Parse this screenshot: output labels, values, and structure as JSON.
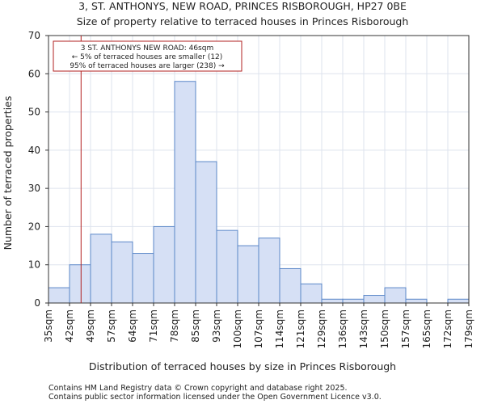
{
  "chart_data": {
    "type": "bar",
    "title_line1": "3, ST. ANTHONYS, NEW ROAD, PRINCES RISBOROUGH, HP27 0BE",
    "title_line2": "Size of property relative to terraced houses in Princes Risborough",
    "xlabel": "Distribution of terraced houses by size in Princes Risborough",
    "ylabel": "Number of terraced properties",
    "tick_labels": [
      "35sqm",
      "42sqm",
      "49sqm",
      "57sqm",
      "64sqm",
      "71sqm",
      "78sqm",
      "85sqm",
      "93sqm",
      "100sqm",
      "107sqm",
      "114sqm",
      "121sqm",
      "129sqm",
      "136sqm",
      "143sqm",
      "150sqm",
      "157sqm",
      "165sqm",
      "172sqm",
      "179sqm"
    ],
    "values": [
      4,
      10,
      18,
      16,
      13,
      20,
      58,
      37,
      19,
      15,
      17,
      9,
      5,
      1,
      1,
      2,
      4,
      1,
      0,
      1
    ],
    "ylim": [
      0,
      70
    ],
    "yticks": [
      0,
      10,
      20,
      30,
      40,
      50,
      60,
      70
    ],
    "grid": true,
    "bar_color": "#d6e0f5",
    "bar_edge_color": "#5b87c8",
    "marker": {
      "bin_position": 1.55,
      "color": "#b22222",
      "line1": "3 ST. ANTHONYS NEW ROAD: 46sqm",
      "line2": "← 5% of terraced houses are smaller (12)",
      "line3": "95% of terraced houses are larger (238) →"
    },
    "footer_line1": "Contains HM Land Registry data © Crown copyright and database right 2025.",
    "footer_line2": "Contains public sector information licensed under the Open Government Licence v3.0."
  }
}
